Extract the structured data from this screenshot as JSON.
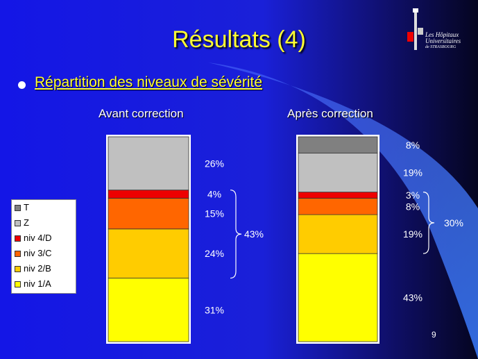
{
  "slide": {
    "title": "Résultats (4)",
    "bullet": "Répartition des niveaux de sévérité",
    "page_number": "9",
    "logo": {
      "line1": "Les Hôpitaux",
      "line2": "Universitaires",
      "line3": "de STRASBOURG"
    }
  },
  "chart_data": {
    "type": "bar",
    "stacked": true,
    "normalized": true,
    "categories": [
      "Avant correction",
      "Après correction"
    ],
    "series": [
      {
        "name": "niv 1/A",
        "color": "#ffff00",
        "values": [
          31,
          43
        ],
        "labels": [
          "31%",
          "43%"
        ]
      },
      {
        "name": "niv 2/B",
        "color": "#ffcc00",
        "values": [
          24,
          19
        ],
        "labels": [
          "24%",
          "19%"
        ]
      },
      {
        "name": "niv 3/C",
        "color": "#ff6600",
        "values": [
          15,
          8
        ],
        "labels": [
          "15%",
          "8%"
        ]
      },
      {
        "name": "niv 4/D",
        "color": "#ee0000",
        "values": [
          4,
          3
        ],
        "labels": [
          "4%",
          "3%"
        ]
      },
      {
        "name": "Z",
        "color": "#c0c0c0",
        "values": [
          26,
          19
        ],
        "labels": [
          "26%",
          "19%"
        ]
      },
      {
        "name": "T",
        "color": "#808080",
        "values": [
          0,
          8
        ],
        "labels": [
          "",
          "8%"
        ]
      }
    ],
    "brace_labels": [
      "43%",
      "30%"
    ],
    "legend": [
      "T",
      "Z",
      "niv 4/D",
      "niv 3/C",
      "niv 2/B",
      "niv 1/A"
    ],
    "legend_position": "left"
  }
}
